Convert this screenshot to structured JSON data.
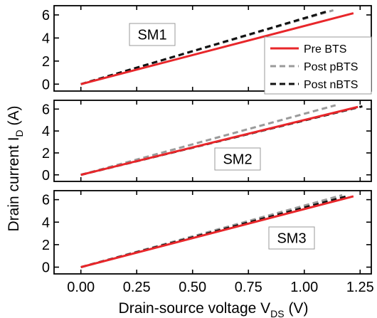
{
  "chart_data": [
    {
      "type": "line",
      "label": "SM1",
      "xlim": [
        -0.12,
        1.3
      ],
      "ylim": [
        -0.6,
        6.8
      ],
      "yticks": [
        0,
        2,
        4,
        6
      ],
      "series": [
        {
          "name": "Pre BTS",
          "x": [
            0.0,
            1.22
          ],
          "y": [
            0.0,
            6.15
          ]
        },
        {
          "name": "Post pBTS",
          "x": [
            0.0,
            1.13
          ],
          "y": [
            0.0,
            6.4
          ]
        },
        {
          "name": "Post nBTS",
          "x": [
            0.0,
            1.11
          ],
          "y": [
            0.0,
            6.35
          ]
        }
      ]
    },
    {
      "type": "line",
      "label": "SM2",
      "xlim": [
        -0.12,
        1.3
      ],
      "ylim": [
        -0.6,
        6.8
      ],
      "yticks": [
        0,
        2,
        4,
        6
      ],
      "series": [
        {
          "name": "Pre BTS",
          "x": [
            0.0,
            1.24
          ],
          "y": [
            0.0,
            6.2
          ]
        },
        {
          "name": "Post pBTS",
          "x": [
            0.0,
            1.14
          ],
          "y": [
            0.0,
            6.35
          ]
        },
        {
          "name": "Post nBTS",
          "x": [
            0.0,
            1.26
          ],
          "y": [
            0.0,
            6.25
          ]
        }
      ]
    },
    {
      "type": "line",
      "label": "SM3",
      "xlim": [
        -0.12,
        1.3
      ],
      "ylim": [
        -0.6,
        6.8
      ],
      "yticks": [
        0,
        2,
        4,
        6
      ],
      "series": [
        {
          "name": "Pre BTS",
          "x": [
            0.0,
            1.22
          ],
          "y": [
            0.0,
            6.3
          ]
        },
        {
          "name": "Post pBTS",
          "x": [
            0.0,
            1.17
          ],
          "y": [
            0.0,
            6.4
          ]
        },
        {
          "name": "Post nBTS",
          "x": [
            0.0,
            1.19
          ],
          "y": [
            0.0,
            6.3
          ]
        }
      ]
    }
  ],
  "xticks": [
    0.0,
    0.25,
    0.5,
    0.75,
    1.0,
    1.25
  ],
  "xtick_labels": [
    "0.00",
    "0.25",
    "0.50",
    "0.75",
    "1.00",
    "1.25"
  ],
  "xlabel": {
    "main": "Drain-source voltage V",
    "sub": "DS",
    "unit": " (V)"
  },
  "ylabel": {
    "main": "Drain current I",
    "sub": "D",
    "unit": " (A)"
  },
  "legend": {
    "placement": "right of SM1 panel",
    "entries": [
      {
        "name": "Pre BTS",
        "color": "#e8262a",
        "style": "solid"
      },
      {
        "name": "Post pBTS",
        "color": "#9a9a9a",
        "style": "dashed"
      },
      {
        "name": "Post nBTS",
        "color": "#111111",
        "style": "dashed"
      }
    ]
  },
  "colors": {
    "pre": "#e8262a",
    "ppbts": "#9a9a9a",
    "pnbts": "#111111"
  }
}
